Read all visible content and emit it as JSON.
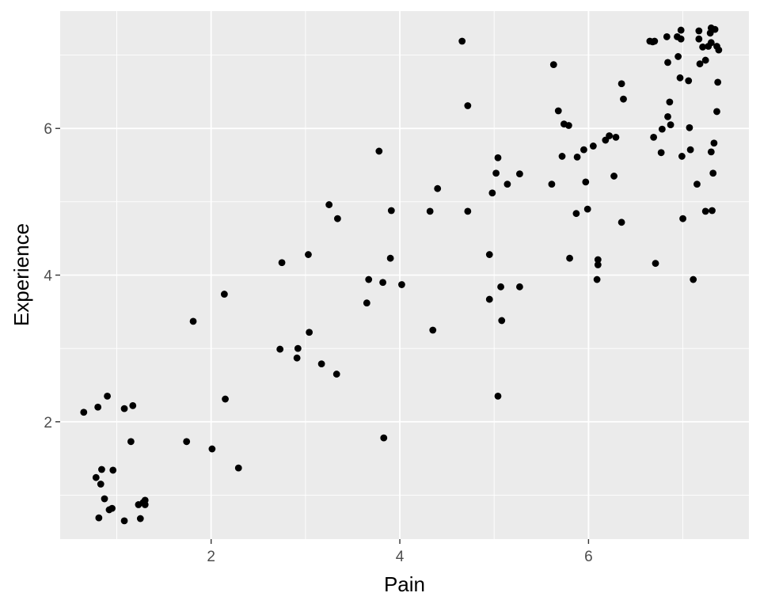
{
  "chart_data": {
    "type": "scatter",
    "title": "",
    "xlabel": "Pain",
    "ylabel": "Experience",
    "xlim": [
      0.4,
      7.7
    ],
    "ylim": [
      0.4,
      7.6
    ],
    "x_ticks": [
      2,
      4,
      6
    ],
    "y_ticks": [
      2,
      4,
      6
    ],
    "x_tick_labels": [
      "2",
      "4",
      "6"
    ],
    "y_tick_labels": [
      "2",
      "4",
      "6"
    ],
    "grid": true,
    "panel_background": "#EBEBEB",
    "grid_color": "#FFFFFF",
    "point_color": "#000000",
    "points": [
      [
        0.65,
        2.13
      ],
      [
        0.8,
        2.2
      ],
      [
        0.9,
        2.35
      ],
      [
        1.08,
        2.18
      ],
      [
        1.17,
        2.22
      ],
      [
        0.78,
        1.24
      ],
      [
        0.84,
        1.35
      ],
      [
        0.83,
        1.15
      ],
      [
        0.96,
        1.34
      ],
      [
        1.15,
        1.73
      ],
      [
        0.87,
        0.95
      ],
      [
        0.92,
        0.8
      ],
      [
        0.95,
        0.82
      ],
      [
        0.81,
        0.69
      ],
      [
        1.08,
        0.65
      ],
      [
        1.23,
        0.87
      ],
      [
        1.28,
        0.9
      ],
      [
        1.3,
        0.93
      ],
      [
        1.3,
        0.87
      ],
      [
        1.25,
        0.68
      ],
      [
        1.74,
        1.73
      ],
      [
        1.81,
        3.37
      ],
      [
        2.01,
        1.63
      ],
      [
        2.14,
        3.74
      ],
      [
        2.15,
        2.31
      ],
      [
        2.29,
        1.37
      ],
      [
        2.73,
        2.99
      ],
      [
        2.75,
        4.17
      ],
      [
        2.91,
        2.87
      ],
      [
        2.92,
        3.0
      ],
      [
        3.03,
        4.28
      ],
      [
        3.04,
        3.22
      ],
      [
        3.17,
        2.79
      ],
      [
        3.25,
        4.96
      ],
      [
        3.33,
        2.65
      ],
      [
        3.34,
        4.77
      ],
      [
        3.65,
        3.62
      ],
      [
        3.67,
        3.94
      ],
      [
        3.78,
        5.69
      ],
      [
        3.82,
        3.9
      ],
      [
        3.83,
        1.78
      ],
      [
        3.9,
        4.23
      ],
      [
        3.91,
        4.88
      ],
      [
        4.02,
        3.87
      ],
      [
        4.32,
        4.87
      ],
      [
        4.35,
        3.25
      ],
      [
        4.4,
        5.18
      ],
      [
        4.66,
        7.19
      ],
      [
        4.72,
        6.31
      ],
      [
        4.72,
        4.87
      ],
      [
        4.95,
        4.28
      ],
      [
        4.95,
        3.67
      ],
      [
        4.98,
        5.12
      ],
      [
        5.02,
        5.39
      ],
      [
        5.04,
        5.6
      ],
      [
        5.04,
        2.35
      ],
      [
        5.07,
        3.84
      ],
      [
        5.08,
        3.38
      ],
      [
        5.14,
        5.24
      ],
      [
        5.27,
        5.38
      ],
      [
        5.27,
        3.84
      ],
      [
        5.61,
        5.24
      ],
      [
        5.63,
        6.87
      ],
      [
        5.68,
        6.24
      ],
      [
        5.72,
        5.62
      ],
      [
        5.74,
        6.06
      ],
      [
        5.79,
        6.04
      ],
      [
        5.8,
        4.23
      ],
      [
        5.87,
        4.84
      ],
      [
        5.88,
        5.61
      ],
      [
        5.95,
        5.71
      ],
      [
        5.97,
        5.27
      ],
      [
        5.99,
        4.9
      ],
      [
        6.05,
        5.76
      ],
      [
        6.09,
        3.94
      ],
      [
        6.1,
        4.14
      ],
      [
        6.1,
        4.21
      ],
      [
        6.18,
        5.84
      ],
      [
        6.22,
        5.9
      ],
      [
        6.27,
        5.35
      ],
      [
        6.29,
        5.88
      ],
      [
        6.35,
        4.72
      ],
      [
        6.35,
        6.61
      ],
      [
        6.37,
        6.4
      ],
      [
        6.65,
        7.19
      ],
      [
        6.68,
        7.18
      ],
      [
        6.7,
        7.19
      ],
      [
        6.69,
        5.88
      ],
      [
        6.71,
        4.16
      ],
      [
        6.77,
        5.67
      ],
      [
        6.78,
        5.99
      ],
      [
        6.83,
        7.25
      ],
      [
        6.84,
        6.9
      ],
      [
        6.84,
        6.16
      ],
      [
        6.86,
        6.36
      ],
      [
        6.87,
        6.05
      ],
      [
        6.94,
        7.25
      ],
      [
        6.95,
        6.98
      ],
      [
        6.97,
        6.69
      ],
      [
        6.98,
        7.34
      ],
      [
        6.98,
        7.22
      ],
      [
        6.99,
        5.62
      ],
      [
        7.0,
        4.77
      ],
      [
        7.06,
        6.65
      ],
      [
        7.07,
        6.01
      ],
      [
        7.08,
        5.71
      ],
      [
        7.11,
        3.94
      ],
      [
        7.15,
        5.24
      ],
      [
        7.17,
        7.33
      ],
      [
        7.17,
        7.22
      ],
      [
        7.18,
        6.88
      ],
      [
        7.21,
        7.11
      ],
      [
        7.24,
        6.93
      ],
      [
        7.24,
        4.87
      ],
      [
        7.27,
        7.12
      ],
      [
        7.29,
        7.3
      ],
      [
        7.3,
        7.37
      ],
      [
        7.3,
        7.17
      ],
      [
        7.3,
        5.68
      ],
      [
        7.31,
        4.88
      ],
      [
        7.32,
        5.39
      ],
      [
        7.33,
        5.8
      ],
      [
        7.34,
        7.35
      ],
      [
        7.36,
        7.12
      ],
      [
        7.36,
        6.23
      ],
      [
        7.37,
        6.63
      ],
      [
        7.38,
        7.07
      ]
    ]
  }
}
